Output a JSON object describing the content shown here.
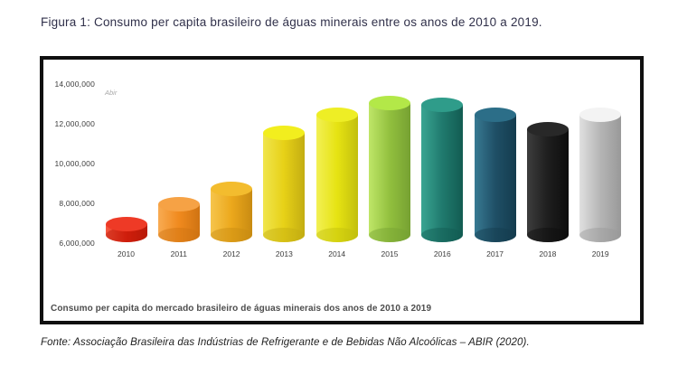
{
  "figure": {
    "title": "Figura 1: Consumo per capita brasileiro de águas minerais entre os anos de 2010 a 2019.",
    "source": "Fonte: Associação Brasileira das Indústrias de Refrigerante e de Bebidas Não Alcoólicas – ABIR (2020)."
  },
  "chart_data": {
    "type": "bar",
    "subtype": "3d-cylinder",
    "title": "Consumo per capita do mercado brasileiro de águas minerais dos anos de 2010 a 2019",
    "legend": [
      "Abir"
    ],
    "legend_position": "top-left",
    "grid": false,
    "categories": [
      "2010",
      "2011",
      "2012",
      "2013",
      "2014",
      "2015",
      "2016",
      "2017",
      "2018",
      "2019"
    ],
    "values": [
      6900000,
      7900000,
      8700000,
      11500000,
      12400000,
      13000000,
      12900000,
      12400000,
      11700000,
      12400000
    ],
    "ylim": [
      6000000,
      14000000
    ],
    "ytick_interval": 2000000,
    "ytick_labels": [
      "6,000,000",
      "8,000,000",
      "10,000,000",
      "12,000,000",
      "14,000,000"
    ],
    "xlabel": "",
    "ylabel": "",
    "bar_colors": [
      {
        "name": "red",
        "top": "#ee3a26",
        "light": "#f65a42",
        "base": "#e2200e",
        "dark": "#b81a09"
      },
      {
        "name": "orange",
        "top": "#f6a245",
        "light": "#f8ab52",
        "base": "#f08a1e",
        "dark": "#cf7312"
      },
      {
        "name": "amber",
        "top": "#f3bc2e",
        "light": "#f6c54c",
        "base": "#eca81c",
        "dark": "#c88b12"
      },
      {
        "name": "yellow",
        "top": "#f2ee1e",
        "light": "#f0e54d",
        "base": "#e7d117",
        "dark": "#c3ad12"
      },
      {
        "name": "bright-yellow",
        "top": "#eeee25",
        "light": "#f2f054",
        "base": "#e6e312",
        "dark": "#c2bf0e"
      },
      {
        "name": "chartreuse",
        "top": "#b3e848",
        "light": "#bfe668",
        "base": "#92c03e",
        "dark": "#76a132"
      },
      {
        "name": "teal",
        "top": "#2f9c8a",
        "light": "#3aa592",
        "base": "#207a6e",
        "dark": "#125c52"
      },
      {
        "name": "dark-teal-blue",
        "top": "#2c6e88",
        "light": "#387a93",
        "base": "#1f4f66",
        "dark": "#143c4e"
      },
      {
        "name": "black",
        "top": "#282828",
        "light": "#3d3d3d",
        "base": "#1e1e1e",
        "dark": "#0d0d0d"
      },
      {
        "name": "gray-white",
        "top": "#f3f3f3",
        "light": "#e0e0e0",
        "base": "#b5b5b5",
        "dark": "#999999"
      }
    ],
    "frame_border_color": "#101010"
  }
}
